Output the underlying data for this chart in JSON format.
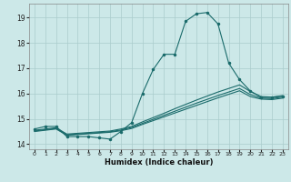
{
  "xlabel": "Humidex (Indice chaleur)",
  "bg_color": "#cce8e8",
  "grid_color": "#aacccc",
  "line_color": "#1a6b6b",
  "xlim": [
    -0.5,
    23.5
  ],
  "ylim": [
    13.8,
    19.55
  ],
  "xticks": [
    0,
    1,
    2,
    3,
    4,
    5,
    6,
    7,
    8,
    9,
    10,
    11,
    12,
    13,
    14,
    15,
    16,
    17,
    18,
    19,
    20,
    21,
    22,
    23
  ],
  "yticks": [
    14,
    15,
    16,
    17,
    18,
    19
  ],
  "main_x": [
    0,
    1,
    2,
    3,
    4,
    5,
    6,
    7,
    8,
    9,
    10,
    11,
    12,
    13,
    14,
    15,
    16,
    17,
    18,
    19,
    20,
    21,
    22,
    23
  ],
  "main_y": [
    14.6,
    14.7,
    14.7,
    14.3,
    14.3,
    14.3,
    14.25,
    14.2,
    14.5,
    14.85,
    16.0,
    16.95,
    17.55,
    17.55,
    18.85,
    19.15,
    19.2,
    18.75,
    17.2,
    16.55,
    16.1,
    15.85,
    15.85,
    15.9
  ],
  "line2_x": [
    0,
    1,
    2,
    3,
    4,
    5,
    6,
    7,
    8,
    9,
    10,
    11,
    12,
    13,
    14,
    15,
    16,
    17,
    18,
    19,
    20,
    21,
    22,
    23
  ],
  "line2_y": [
    14.55,
    14.6,
    14.65,
    14.4,
    14.43,
    14.46,
    14.49,
    14.52,
    14.6,
    14.7,
    14.88,
    15.05,
    15.22,
    15.4,
    15.57,
    15.74,
    15.9,
    16.06,
    16.2,
    16.34,
    16.08,
    15.88,
    15.86,
    15.92
  ],
  "line3_x": [
    0,
    1,
    2,
    3,
    4,
    5,
    6,
    7,
    8,
    9,
    10,
    11,
    12,
    13,
    14,
    15,
    16,
    17,
    18,
    19,
    20,
    21,
    22,
    23
  ],
  "line3_y": [
    14.52,
    14.57,
    14.62,
    14.37,
    14.4,
    14.43,
    14.46,
    14.49,
    14.56,
    14.66,
    14.82,
    14.98,
    15.14,
    15.3,
    15.46,
    15.62,
    15.77,
    15.92,
    16.06,
    16.2,
    15.96,
    15.82,
    15.8,
    15.86
  ],
  "line4_x": [
    0,
    1,
    2,
    3,
    4,
    5,
    6,
    7,
    8,
    9,
    10,
    11,
    12,
    13,
    14,
    15,
    16,
    17,
    18,
    19,
    20,
    21,
    22,
    23
  ],
  "line4_y": [
    14.5,
    14.55,
    14.6,
    14.35,
    14.38,
    14.41,
    14.44,
    14.47,
    14.53,
    14.62,
    14.78,
    14.93,
    15.08,
    15.23,
    15.38,
    15.53,
    15.68,
    15.83,
    15.97,
    16.11,
    15.88,
    15.78,
    15.76,
    15.82
  ]
}
